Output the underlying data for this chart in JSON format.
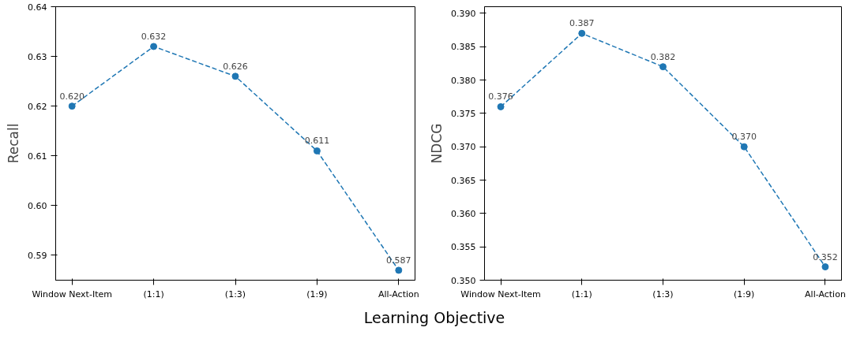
{
  "chart_data": [
    {
      "type": "line",
      "xlabel": "Learning Objective",
      "ylabel": "Recall",
      "categories": [
        "Window Next-Item",
        "(1:1)",
        "(1:3)",
        "(1:9)",
        "All-Action"
      ],
      "series": [
        {
          "color": "#1f77b4",
          "values": [
            0.62,
            0.632,
            0.626,
            0.611,
            0.587
          ],
          "value_labels": [
            "0.620",
            "0.632",
            "0.626",
            "0.611",
            "0.587"
          ]
        }
      ],
      "ylim": [
        0.585,
        0.64
      ],
      "yticks": [
        {
          "value": 0.59,
          "label": "0.59"
        },
        {
          "value": 0.6,
          "label": "0.60"
        },
        {
          "value": 0.61,
          "label": "0.61"
        },
        {
          "value": 0.62,
          "label": "0.62"
        },
        {
          "value": 0.63,
          "label": "0.63"
        },
        {
          "value": 0.64,
          "label": "0.64"
        }
      ],
      "marker": "circle",
      "line_style": "dashed",
      "grid": false
    },
    {
      "type": "line",
      "ylabel": "NDCG",
      "categories": [
        "Window Next-Item",
        "(1:1)",
        "(1:3)",
        "(1:9)",
        "All-Action"
      ],
      "series": [
        {
          "color": "#1f77b4",
          "values": [
            0.376,
            0.387,
            0.382,
            0.37,
            0.352
          ],
          "value_labels": [
            "0.376",
            "0.387",
            "0.382",
            "0.370",
            "0.352"
          ]
        }
      ],
      "ylim": [
        0.35,
        0.391
      ],
      "yticks": [
        {
          "value": 0.35,
          "label": "0.350"
        },
        {
          "value": 0.355,
          "label": "0.355"
        },
        {
          "value": 0.36,
          "label": "0.360"
        },
        {
          "value": 0.365,
          "label": "0.365"
        },
        {
          "value": 0.37,
          "label": "0.370"
        },
        {
          "value": 0.375,
          "label": "0.375"
        },
        {
          "value": 0.38,
          "label": "0.380"
        },
        {
          "value": 0.385,
          "label": "0.385"
        },
        {
          "value": 0.39,
          "label": "0.390"
        }
      ],
      "marker": "circle",
      "line_style": "dashed",
      "grid": false
    }
  ]
}
